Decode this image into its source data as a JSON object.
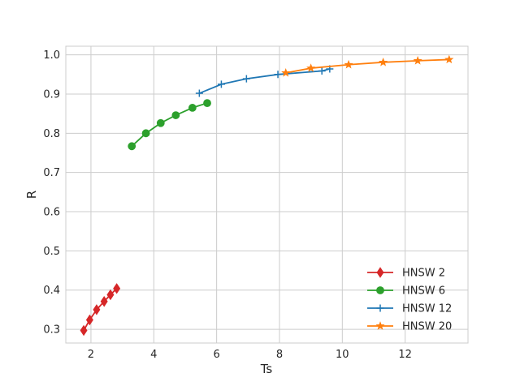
{
  "chart_data": {
    "type": "line",
    "title": "",
    "xlabel": "Ts",
    "ylabel": "R",
    "xlim": [
      1.2,
      14.0
    ],
    "ylim": [
      0.265,
      1.022
    ],
    "xticks": [
      2,
      4,
      6,
      8,
      10,
      12
    ],
    "yticks": [
      0.3,
      0.4,
      0.5,
      0.6,
      0.7,
      0.8,
      0.9,
      1.0
    ],
    "xtick_labels": [
      "2",
      "4",
      "6",
      "8",
      "10",
      "12"
    ],
    "ytick_labels": [
      "0.3",
      "0.4",
      "0.5",
      "0.6",
      "0.7",
      "0.8",
      "0.9",
      "1.0"
    ],
    "grid": true,
    "legend_position": "lower-right",
    "series": [
      {
        "name": "HNSW 2",
        "color": "#d62728",
        "marker": "diamond",
        "x": [
          1.77,
          1.96,
          2.18,
          2.42,
          2.62,
          2.82
        ],
        "y": [
          0.297,
          0.324,
          0.35,
          0.371,
          0.388,
          0.404
        ]
      },
      {
        "name": "HNSW 6",
        "color": "#2ca02c",
        "marker": "circle",
        "x": [
          3.3,
          3.75,
          4.22,
          4.7,
          5.23,
          5.7
        ],
        "y": [
          0.767,
          0.8,
          0.826,
          0.846,
          0.865,
          0.877
        ]
      },
      {
        "name": "HNSW 12",
        "color": "#1f77b4",
        "marker": "plus",
        "x": [
          5.45,
          6.15,
          6.95,
          7.95,
          9.35,
          9.6
        ],
        "y": [
          0.902,
          0.925,
          0.939,
          0.95,
          0.959,
          0.964
        ]
      },
      {
        "name": "HNSW 20",
        "color": "#ff7f0e",
        "marker": "star",
        "x": [
          8.2,
          9.0,
          10.2,
          11.3,
          12.4,
          13.4
        ],
        "y": [
          0.954,
          0.966,
          0.975,
          0.981,
          0.985,
          0.988
        ]
      }
    ]
  }
}
